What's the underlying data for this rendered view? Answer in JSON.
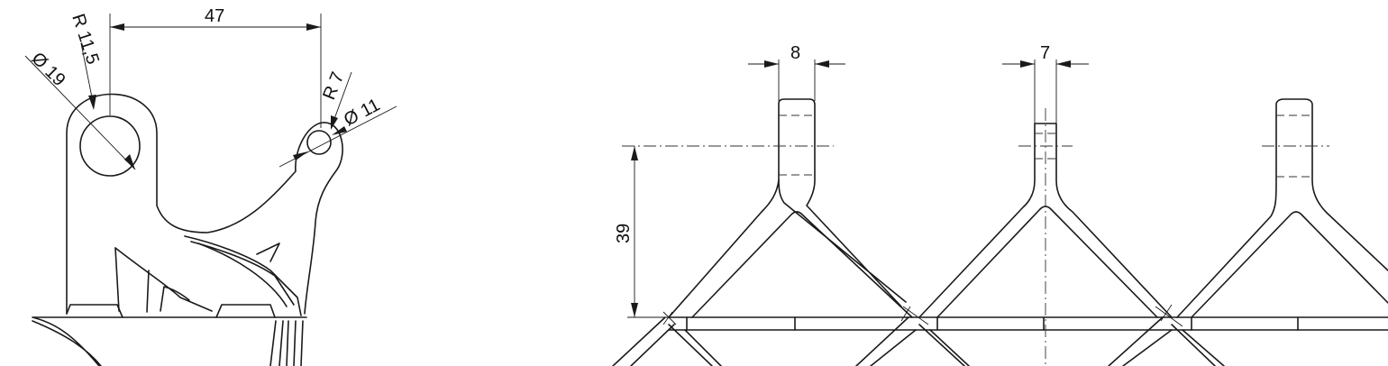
{
  "drawing": {
    "left_view": {
      "dim_width": "47",
      "dim_big_radius": "R 11,5",
      "dim_big_diameter": "Ø 19",
      "dim_small_radius": "R 7",
      "dim_small_diameter": "Ø 11"
    },
    "right_view": {
      "dim_stem_width": "8",
      "dim_pin_width": "7",
      "dim_height": "39"
    }
  }
}
